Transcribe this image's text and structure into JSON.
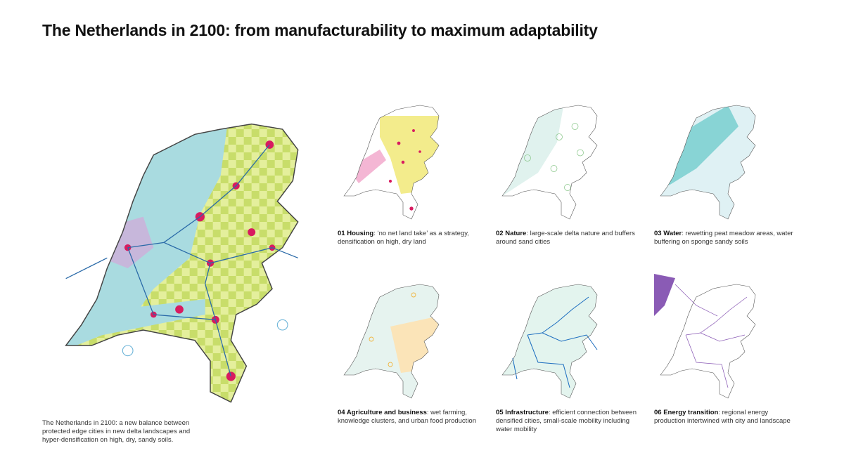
{
  "title": "The Netherlands in 2100: from manufacturability to maximum adaptability",
  "main_caption": "The Netherlands in 2100: a new balance between protected edge cities in new delta landscapes and hyper-densification on high, dry, sandy soils.",
  "maps": [
    {
      "heading": "01 Housing",
      "text": ": ‘no net land take’ as a strategy, densification on high, dry land"
    },
    {
      "heading": "02 Nature",
      "text": ": large-scale delta nature and buffers around sand cities"
    },
    {
      "heading": "03 Water",
      "text": ": rewetting peat meadow areas, water buffering on sponge sandy soils"
    },
    {
      "heading": "04 Agriculture and business",
      "text": ": wet farming, knowledge clusters, and urban food production"
    },
    {
      "heading": "05 Infrastructure",
      "text": ": efficient connection between densified cities, small-scale mobility including water mobility"
    },
    {
      "heading": "06 Energy transition",
      "text": ": regional energy production intertwined with city and landscape"
    }
  ]
}
